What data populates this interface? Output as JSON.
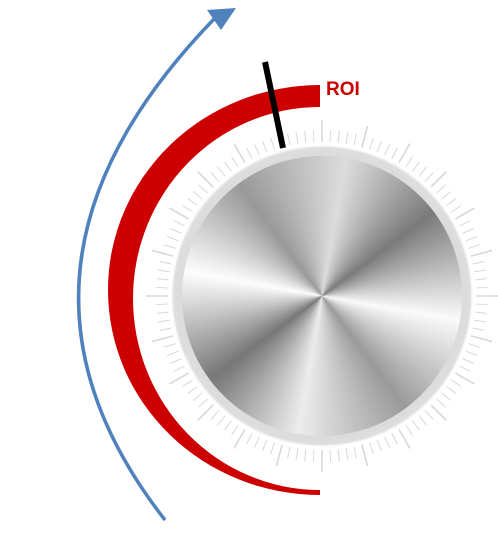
{
  "label": "ROI"
}
